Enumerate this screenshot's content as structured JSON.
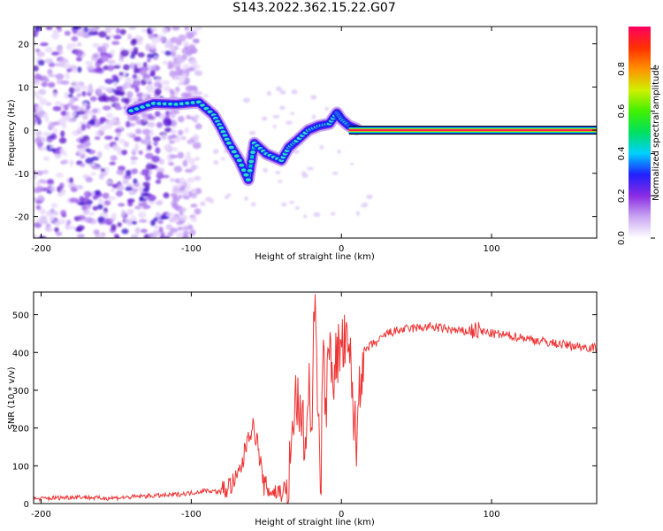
{
  "title": "S143.2022.362.15.22.G07",
  "chart_data": [
    {
      "type": "heatmap",
      "xlabel": "Height of straight line (km)",
      "ylabel": "Frequency (Hz)",
      "xlim": [
        -205,
        170
      ],
      "ylim": [
        -25,
        24
      ],
      "xticks": [
        -200,
        -100,
        0,
        100
      ],
      "yticks": [
        -20,
        -10,
        0,
        10,
        20
      ],
      "colorbar": {
        "label": "Normalized spectral amplitude",
        "range": [
          0,
          1
        ],
        "ticks": [
          "0.0",
          "0.2",
          "0.4",
          "0.6",
          "0.8"
        ],
        "colormap": [
          "#ffffff",
          "#c9a6f2",
          "#8a2be2",
          "#2020ff",
          "#00d0ff",
          "#00e060",
          "#40f000",
          "#d0f000",
          "#ff9000",
          "#ff3000",
          "#ff0060"
        ]
      },
      "ridge": {
        "note_free": true,
        "points": [
          [
            -140,
            4.5
          ],
          [
            -125,
            6.2
          ],
          [
            -110,
            6.0
          ],
          [
            -95,
            6.5
          ],
          [
            -85,
            3.5
          ],
          [
            -80,
            0.5
          ],
          [
            -75,
            -3
          ],
          [
            -68,
            -7
          ],
          [
            -62,
            -11.5
          ],
          [
            -58,
            -3
          ],
          [
            -50,
            -5.5
          ],
          [
            -40,
            -7
          ],
          [
            -35,
            -4
          ],
          [
            -30,
            -2.5
          ],
          [
            -22,
            0
          ],
          [
            -15,
            1
          ],
          [
            -8,
            1.5
          ],
          [
            -3,
            4
          ],
          [
            0,
            2.5
          ],
          [
            5,
            1
          ],
          [
            10,
            0.3
          ],
          [
            170,
            0
          ]
        ]
      },
      "line": {
        "x": [
          5,
          170
        ],
        "y": 0
      }
    },
    {
      "type": "line",
      "xlabel": "Height of straight line (km)",
      "ylabel": "SNR (10 * v/v)",
      "xlim": [
        -205,
        170
      ],
      "ylim": [
        0,
        560
      ],
      "xticks": [
        -200,
        -100,
        0,
        100
      ],
      "yticks": [
        0,
        100,
        200,
        300,
        400,
        500
      ],
      "series": [
        {
          "color": "#ee3333",
          "x": [
            -205,
            -190,
            -175,
            -160,
            -145,
            -130,
            -115,
            -100,
            -90,
            -80,
            -75,
            -70,
            -65,
            -62,
            -58,
            -55,
            -52,
            -48,
            -44,
            -40,
            -36,
            -34,
            -30,
            -28,
            -26,
            -24,
            -22,
            -20,
            -18,
            -16,
            -14,
            -12,
            -10,
            -8,
            -5,
            -2,
            2,
            6,
            10,
            12,
            15,
            20,
            25,
            30,
            40,
            50,
            60,
            70,
            80,
            90,
            100,
            110,
            120,
            130,
            140,
            150,
            160,
            170
          ],
          "y": [
            12,
            15,
            18,
            14,
            16,
            20,
            22,
            28,
            35,
            30,
            45,
            60,
            120,
            190,
            200,
            140,
            50,
            35,
            30,
            32,
            40,
            110,
            300,
            200,
            260,
            120,
            330,
            180,
            550,
            300,
            20,
            380,
            260,
            420,
            350,
            400,
            420,
            370,
            140,
            330,
            400,
            420,
            430,
            450,
            460,
            465,
            468,
            462,
            455,
            458,
            450,
            445,
            440,
            432,
            425,
            420,
            415,
            412
          ]
        }
      ]
    }
  ]
}
